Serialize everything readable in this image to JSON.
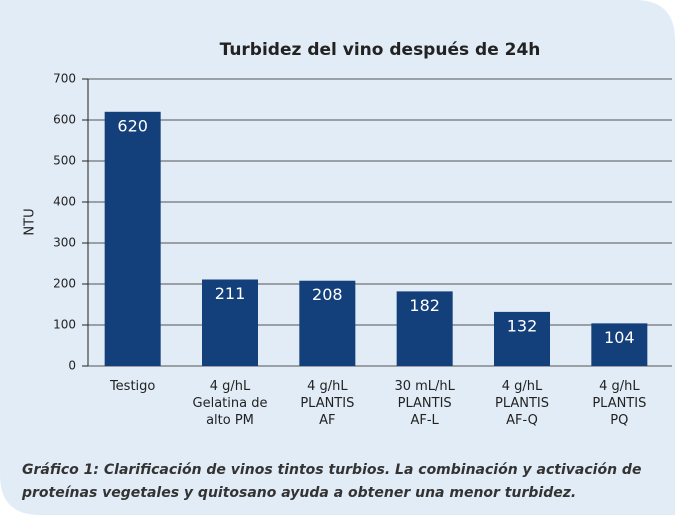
{
  "chart_data": {
    "type": "bar",
    "title": "Turbidez del vino después de 24h",
    "y_label": "NTU",
    "categories": [
      [
        "Testigo"
      ],
      [
        "4 g/hL",
        "Gelatina de",
        "alto PM"
      ],
      [
        "4 g/hL",
        "PLANTIS",
        "AF"
      ],
      [
        "30 mL/hL",
        "PLANTIS",
        "AF-L"
      ],
      [
        "4 g/hL",
        "PLANTIS",
        "AF-Q"
      ],
      [
        "4 g/hL",
        "PLANTIS",
        "PQ"
      ]
    ],
    "values": [
      620,
      211,
      208,
      182,
      132,
      104
    ],
    "color": "#133f7a",
    "ylim": [
      0,
      700
    ],
    "yticks": [
      0,
      100,
      200,
      300,
      400,
      500,
      600,
      700
    ],
    "grid": true,
    "caption": [
      "Gráfico 1: Clarificación de vinos tintos turbios. La combinación y activación de",
      "proteínas vegetales y quitosano ayuda a obtener una menor turbidez."
    ]
  }
}
